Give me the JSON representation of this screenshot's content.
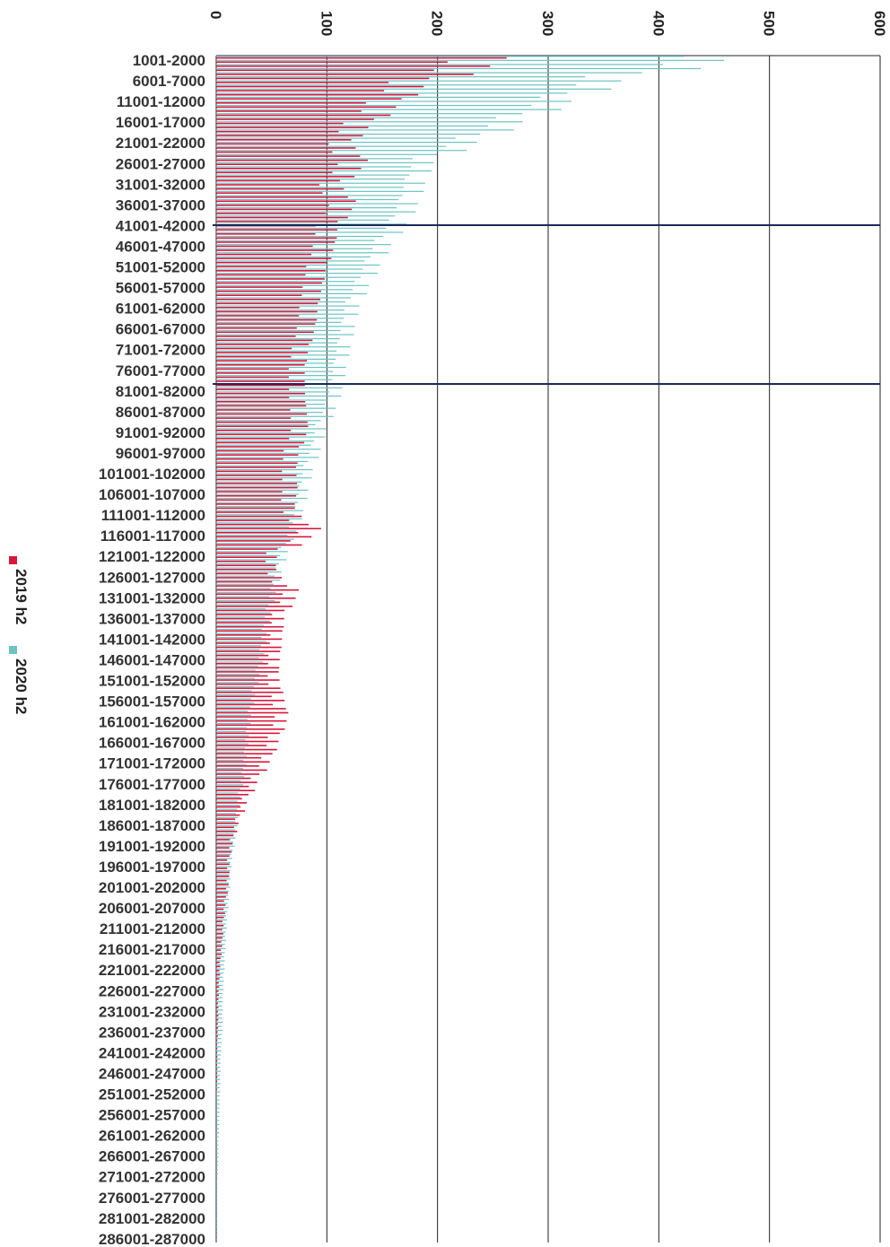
{
  "chart_data": {
    "type": "bar",
    "orientation": "horizontal",
    "rotated_display": true,
    "xlim": [
      0,
      600
    ],
    "ticks": [
      0,
      100,
      200,
      300,
      400,
      500,
      600
    ],
    "grid": true,
    "legend_position": "left",
    "category_labels": [
      "1001-2000",
      "6001-7000",
      "11001-12000",
      "16001-17000",
      "21001-22000",
      "26001-27000",
      "31001-32000",
      "36001-37000",
      "41001-42000",
      "46001-47000",
      "51001-52000",
      "56001-57000",
      "61001-62000",
      "66001-67000",
      "71001-72000",
      "76001-77000",
      "81001-82000",
      "86001-87000",
      "91001-92000",
      "96001-97000",
      "101001-102000",
      "106001-107000",
      "111001-112000",
      "116001-117000",
      "121001-122000",
      "126001-127000",
      "131001-132000",
      "136001-137000",
      "141001-142000",
      "146001-147000",
      "151001-152000",
      "156001-157000",
      "161001-162000",
      "166001-167000",
      "171001-172000",
      "176001-177000",
      "181001-182000",
      "186001-187000",
      "191001-192000",
      "196001-197000",
      "201001-202000",
      "206001-207000",
      "211001-212000",
      "216001-217000",
      "221001-222000",
      "226001-227000",
      "231001-232000",
      "236001-237000",
      "241001-242000",
      "246001-247000",
      "251001-252000",
      "256001-257000",
      "261001-262000",
      "266001-267000",
      "271001-272000",
      "276001-277000",
      "281001-282000",
      "286001-287000"
    ],
    "series": [
      {
        "name": "2019 h2",
        "color": "#d6173c",
        "values": [
          270,
          195,
          170,
          145,
          120,
          140,
          110,
          128,
          110,
          108,
          100,
          96,
          92,
          90,
          84,
          80,
          80,
          81,
          84,
          75,
          72,
          74,
          68,
          99,
          56,
          52,
          76,
          62,
          60,
          58,
          56,
          60,
          66,
          58,
          52,
          40,
          30,
          22,
          16,
          12,
          12,
          9,
          7,
          6,
          4,
          3,
          2,
          2,
          1,
          1,
          1,
          0,
          0,
          0,
          0,
          0,
          0,
          0
        ]
      },
      {
        "name": "2020 h2",
        "color": "#6cc3c3",
        "values": [
          480,
          375,
          330,
          285,
          245,
          198,
          190,
          184,
          175,
          160,
          150,
          140,
          130,
          126,
          122,
          118,
          115,
          110,
          100,
          96,
          88,
          84,
          80,
          74,
          66,
          60,
          55,
          50,
          46,
          44,
          40,
          36,
          32,
          30,
          28,
          26,
          22,
          20,
          18,
          15,
          13,
          12,
          10,
          9,
          8,
          7,
          6,
          6,
          5,
          4,
          4,
          3,
          3,
          2,
          2,
          1,
          1,
          1
        ]
      }
    ]
  }
}
